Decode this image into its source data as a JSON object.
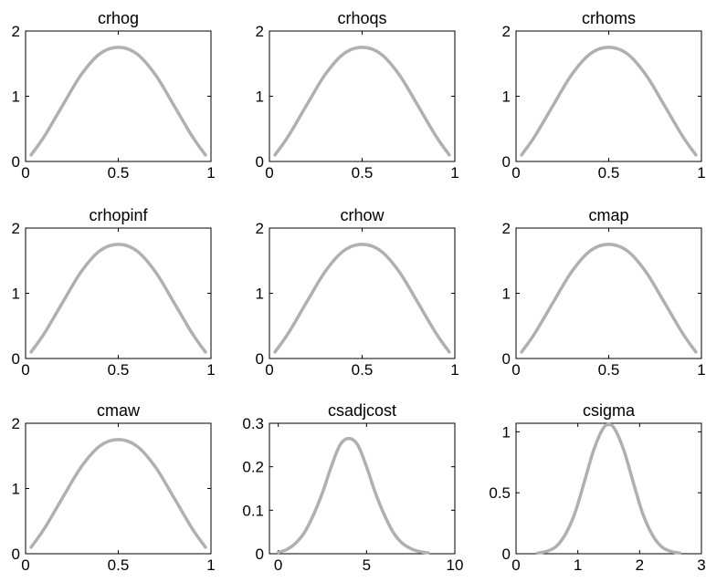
{
  "figure": {
    "background": "#ffffff",
    "line_color": "#b0b0b0",
    "axis_color": "#000000"
  },
  "chart_data": [
    {
      "type": "line",
      "title": "crhog",
      "xlim": [
        0,
        1
      ],
      "ylim": [
        0,
        2
      ],
      "xticks": [
        0,
        0.5,
        1
      ],
      "yticks": [
        0,
        1,
        2
      ],
      "xtick_labels": [
        "0",
        "0.5",
        "1"
      ],
      "ytick_labels": [
        "0",
        "1",
        "2"
      ],
      "grid": false,
      "series": [
        {
          "x": [
            0.03,
            0.1,
            0.2,
            0.3,
            0.4,
            0.5,
            0.6,
            0.7,
            0.8,
            0.9,
            0.97
          ],
          "values": [
            0.1,
            0.38,
            0.86,
            1.33,
            1.65,
            1.75,
            1.65,
            1.33,
            0.86,
            0.38,
            0.1
          ]
        }
      ]
    },
    {
      "type": "line",
      "title": "crhoqs",
      "xlim": [
        0,
        1
      ],
      "ylim": [
        0,
        2
      ],
      "xticks": [
        0,
        0.5,
        1
      ],
      "yticks": [
        0,
        1,
        2
      ],
      "xtick_labels": [
        "0",
        "0.5",
        "1"
      ],
      "ytick_labels": [
        "0",
        "1",
        "2"
      ],
      "grid": false,
      "series": [
        {
          "x": [
            0.03,
            0.1,
            0.2,
            0.3,
            0.4,
            0.5,
            0.6,
            0.7,
            0.8,
            0.9,
            0.97
          ],
          "values": [
            0.1,
            0.38,
            0.86,
            1.33,
            1.65,
            1.75,
            1.65,
            1.33,
            0.86,
            0.38,
            0.1
          ]
        }
      ]
    },
    {
      "type": "line",
      "title": "crhoms",
      "xlim": [
        0,
        1
      ],
      "ylim": [
        0,
        2
      ],
      "xticks": [
        0,
        0.5,
        1
      ],
      "yticks": [
        0,
        1,
        2
      ],
      "xtick_labels": [
        "0",
        "0.5",
        "1"
      ],
      "ytick_labels": [
        "0",
        "1",
        "2"
      ],
      "grid": false,
      "series": [
        {
          "x": [
            0.03,
            0.1,
            0.2,
            0.3,
            0.4,
            0.5,
            0.6,
            0.7,
            0.8,
            0.9,
            0.97
          ],
          "values": [
            0.1,
            0.38,
            0.86,
            1.33,
            1.65,
            1.75,
            1.65,
            1.33,
            0.86,
            0.38,
            0.1
          ]
        }
      ]
    },
    {
      "type": "line",
      "title": "crhopinf",
      "xlim": [
        0,
        1
      ],
      "ylim": [
        0,
        2
      ],
      "xticks": [
        0,
        0.5,
        1
      ],
      "yticks": [
        0,
        1,
        2
      ],
      "xtick_labels": [
        "0",
        "0.5",
        "1"
      ],
      "ytick_labels": [
        "0",
        "1",
        "2"
      ],
      "grid": false,
      "series": [
        {
          "x": [
            0.03,
            0.1,
            0.2,
            0.3,
            0.4,
            0.5,
            0.6,
            0.7,
            0.8,
            0.9,
            0.97
          ],
          "values": [
            0.1,
            0.38,
            0.86,
            1.33,
            1.65,
            1.75,
            1.65,
            1.33,
            0.86,
            0.38,
            0.1
          ]
        }
      ]
    },
    {
      "type": "line",
      "title": "crhow",
      "xlim": [
        0,
        1
      ],
      "ylim": [
        0,
        2
      ],
      "xticks": [
        0,
        0.5,
        1
      ],
      "yticks": [
        0,
        1,
        2
      ],
      "xtick_labels": [
        "0",
        "0.5",
        "1"
      ],
      "ytick_labels": [
        "0",
        "1",
        "2"
      ],
      "grid": false,
      "series": [
        {
          "x": [
            0.03,
            0.1,
            0.2,
            0.3,
            0.4,
            0.5,
            0.6,
            0.7,
            0.8,
            0.9,
            0.97
          ],
          "values": [
            0.1,
            0.38,
            0.86,
            1.33,
            1.65,
            1.75,
            1.65,
            1.33,
            0.86,
            0.38,
            0.1
          ]
        }
      ]
    },
    {
      "type": "line",
      "title": "cmap",
      "xlim": [
        0,
        1
      ],
      "ylim": [
        0,
        2
      ],
      "xticks": [
        0,
        0.5,
        1
      ],
      "yticks": [
        0,
        1,
        2
      ],
      "xtick_labels": [
        "0",
        "0.5",
        "1"
      ],
      "ytick_labels": [
        "0",
        "1",
        "2"
      ],
      "grid": false,
      "series": [
        {
          "x": [
            0.03,
            0.1,
            0.2,
            0.3,
            0.4,
            0.5,
            0.6,
            0.7,
            0.8,
            0.9,
            0.97
          ],
          "values": [
            0.1,
            0.38,
            0.86,
            1.33,
            1.65,
            1.75,
            1.65,
            1.33,
            0.86,
            0.38,
            0.1
          ]
        }
      ]
    },
    {
      "type": "line",
      "title": "cmaw",
      "xlim": [
        0,
        1
      ],
      "ylim": [
        0,
        2
      ],
      "xticks": [
        0,
        0.5,
        1
      ],
      "yticks": [
        0,
        1,
        2
      ],
      "xtick_labels": [
        "0",
        "0.5",
        "1"
      ],
      "ytick_labels": [
        "0",
        "1",
        "2"
      ],
      "grid": false,
      "series": [
        {
          "x": [
            0.03,
            0.1,
            0.2,
            0.3,
            0.4,
            0.5,
            0.6,
            0.7,
            0.8,
            0.9,
            0.97
          ],
          "values": [
            0.1,
            0.38,
            0.86,
            1.33,
            1.65,
            1.75,
            1.65,
            1.33,
            0.86,
            0.38,
            0.1
          ]
        }
      ]
    },
    {
      "type": "line",
      "title": "csadjcost",
      "xlim": [
        -0.5,
        10
      ],
      "ylim": [
        0,
        0.3
      ],
      "xticks": [
        0,
        5,
        10
      ],
      "yticks": [
        0,
        0.1,
        0.2,
        0.3
      ],
      "xtick_labels": [
        "0",
        "5",
        "10"
      ],
      "ytick_labels": [
        "0",
        "0.1",
        "0.2",
        "0.3"
      ],
      "grid": false,
      "series": [
        {
          "x": [
            0,
            0.5,
            1,
            1.5,
            2,
            2.5,
            3,
            3.5,
            4,
            4.5,
            5,
            5.5,
            6,
            6.5,
            7,
            7.5,
            8,
            8.5
          ],
          "values": [
            0.003,
            0.01,
            0.025,
            0.05,
            0.09,
            0.14,
            0.2,
            0.25,
            0.265,
            0.25,
            0.2,
            0.14,
            0.09,
            0.05,
            0.025,
            0.012,
            0.005,
            0.002
          ]
        }
      ]
    },
    {
      "type": "line",
      "title": "csigma",
      "xlim": [
        0,
        3
      ],
      "ylim": [
        0,
        1.07
      ],
      "xticks": [
        0,
        1,
        2,
        3
      ],
      "yticks": [
        0,
        0.5,
        1
      ],
      "xtick_labels": [
        "0",
        "1",
        "2",
        "3"
      ],
      "ytick_labels": [
        "0",
        "0.5",
        "1"
      ],
      "grid": false,
      "series": [
        {
          "x": [
            0.35,
            0.5,
            0.65,
            0.8,
            0.95,
            1.1,
            1.25,
            1.4,
            1.5,
            1.6,
            1.75,
            1.9,
            2.05,
            2.2,
            2.35,
            2.5,
            2.65
          ],
          "values": [
            0.005,
            0.02,
            0.06,
            0.16,
            0.33,
            0.58,
            0.84,
            1.02,
            1.06,
            1.02,
            0.84,
            0.58,
            0.33,
            0.16,
            0.06,
            0.02,
            0.005
          ]
        }
      ]
    }
  ]
}
